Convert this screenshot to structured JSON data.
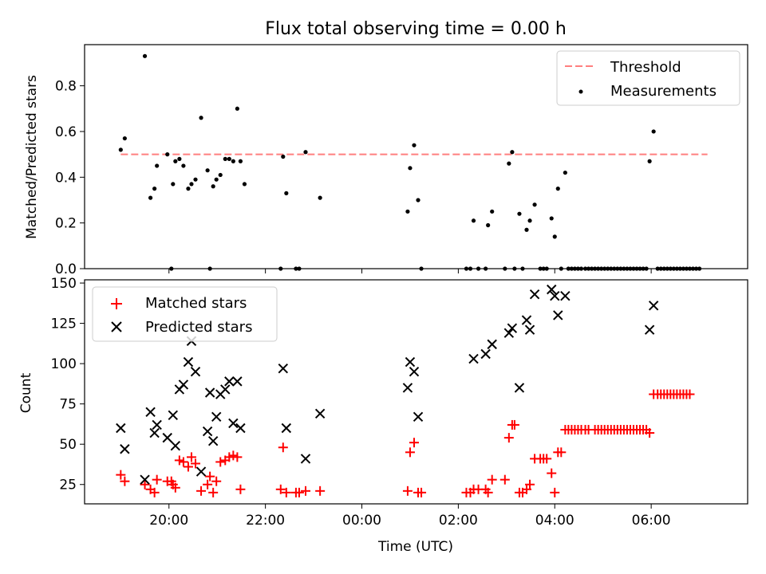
{
  "figure": {
    "title": "Flux total observing time = 0.00 h",
    "xlabel": "Time (UTC)"
  },
  "chart_data": [
    {
      "type": "scatter",
      "title": "Flux total observing time = 0.00 h",
      "ylabel": "Matched/Predicted stars",
      "xlabel": "",
      "xlim": [
        "18:15",
        "08:00"
      ],
      "ylim": [
        0,
        0.98
      ],
      "yticks": [
        "0.0",
        "0.2",
        "0.4",
        "0.6",
        "0.8"
      ],
      "legend_position": "top-right",
      "legend": [
        "Threshold",
        "Measurements"
      ],
      "threshold": {
        "name": "Threshold",
        "value": 0.5,
        "from": "19:00",
        "to": "07:10",
        "color": "#ff7f7f",
        "style": "dashed"
      },
      "series": [
        {
          "name": "Measurements",
          "color": "#000000",
          "points": [
            [
              "19:00",
              0.52
            ],
            [
              "19:05",
              0.57
            ],
            [
              "19:30",
              0.93
            ],
            [
              "19:37",
              0.31
            ],
            [
              "19:42",
              0.35
            ],
            [
              "19:45",
              0.45
            ],
            [
              "19:58",
              0.5
            ],
            [
              "20:03",
              0.0
            ],
            [
              "20:05",
              0.37
            ],
            [
              "20:08",
              0.47
            ],
            [
              "20:13",
              0.48
            ],
            [
              "20:18",
              0.45
            ],
            [
              "20:24",
              0.35
            ],
            [
              "20:28",
              0.37
            ],
            [
              "20:33",
              0.39
            ],
            [
              "20:40",
              0.66
            ],
            [
              "20:48",
              0.43
            ],
            [
              "20:51",
              0.0
            ],
            [
              "20:55",
              0.36
            ],
            [
              "20:59",
              0.39
            ],
            [
              "21:04",
              0.41
            ],
            [
              "21:10",
              0.48
            ],
            [
              "21:15",
              0.48
            ],
            [
              "21:20",
              0.47
            ],
            [
              "21:25",
              0.7
            ],
            [
              "21:29",
              0.47
            ],
            [
              "21:34",
              0.37
            ],
            [
              "22:19",
              0.0
            ],
            [
              "22:22",
              0.49
            ],
            [
              "22:26",
              0.33
            ],
            [
              "22:38",
              0.0
            ],
            [
              "22:42",
              0.0
            ],
            [
              "22:50",
              0.51
            ],
            [
              "23:08",
              0.31
            ],
            [
              "00:57",
              0.25
            ],
            [
              "01:00",
              0.44
            ],
            [
              "01:05",
              0.54
            ],
            [
              "01:10",
              0.3
            ],
            [
              "01:14",
              0.0
            ],
            [
              "02:10",
              0.0
            ],
            [
              "02:15",
              0.0
            ],
            [
              "02:19",
              0.21
            ],
            [
              "02:25",
              0.0
            ],
            [
              "02:34",
              0.0
            ],
            [
              "02:37",
              0.19
            ],
            [
              "02:42",
              0.25
            ],
            [
              "02:58",
              0.0
            ],
            [
              "03:03",
              0.46
            ],
            [
              "03:07",
              0.51
            ],
            [
              "03:10",
              0.0
            ],
            [
              "03:16",
              0.24
            ],
            [
              "03:20",
              0.0
            ],
            [
              "03:25",
              0.17
            ],
            [
              "03:29",
              0.21
            ],
            [
              "03:35",
              0.28
            ],
            [
              "03:42",
              0.0
            ],
            [
              "03:46",
              0.0
            ],
            [
              "03:50",
              0.0
            ],
            [
              "03:56",
              0.22
            ],
            [
              "04:00",
              0.14
            ],
            [
              "04:04",
              0.35
            ],
            [
              "04:08",
              0.0
            ],
            [
              "04:13",
              0.42
            ],
            [
              "04:17",
              0.0
            ],
            [
              "04:21",
              0.0
            ],
            [
              "04:25",
              0.0
            ],
            [
              "04:29",
              0.0
            ],
            [
              "04:33",
              0.0
            ],
            [
              "04:38",
              0.0
            ],
            [
              "04:42",
              0.0
            ],
            [
              "04:46",
              0.0
            ],
            [
              "04:50",
              0.0
            ],
            [
              "04:54",
              0.0
            ],
            [
              "04:58",
              0.0
            ],
            [
              "05:02",
              0.0
            ],
            [
              "05:06",
              0.0
            ],
            [
              "05:10",
              0.0
            ],
            [
              "05:14",
              0.0
            ],
            [
              "05:18",
              0.0
            ],
            [
              "05:22",
              0.0
            ],
            [
              "05:26",
              0.0
            ],
            [
              "05:30",
              0.0
            ],
            [
              "05:34",
              0.0
            ],
            [
              "05:38",
              0.0
            ],
            [
              "05:42",
              0.0
            ],
            [
              "05:46",
              0.0
            ],
            [
              "05:50",
              0.0
            ],
            [
              "05:54",
              0.0
            ],
            [
              "05:58",
              0.47
            ],
            [
              "06:03",
              0.6
            ],
            [
              "06:08",
              0.0
            ],
            [
              "06:12",
              0.0
            ],
            [
              "06:16",
              0.0
            ],
            [
              "06:20",
              0.0
            ],
            [
              "06:24",
              0.0
            ],
            [
              "06:28",
              0.0
            ],
            [
              "06:32",
              0.0
            ],
            [
              "06:36",
              0.0
            ],
            [
              "06:40",
              0.0
            ],
            [
              "06:44",
              0.0
            ],
            [
              "06:48",
              0.0
            ],
            [
              "06:52",
              0.0
            ],
            [
              "06:56",
              0.0
            ],
            [
              "07:00",
              0.0
            ]
          ]
        }
      ]
    },
    {
      "type": "scatter",
      "title": "",
      "xlabel": "Time (UTC)",
      "ylabel": "Count",
      "xlim": [
        "18:15",
        "08:00"
      ],
      "ylim": [
        13,
        152
      ],
      "xticks": [
        "20:00",
        "22:00",
        "00:00",
        "02:00",
        "04:00",
        "06:00"
      ],
      "yticks": [
        "25",
        "50",
        "75",
        "100",
        "125",
        "150"
      ],
      "legend_position": "top-left",
      "legend": [
        "Matched stars",
        "Predicted stars"
      ],
      "series": [
        {
          "name": "Matched stars",
          "marker": "plus",
          "color": "#ff0000",
          "points": [
            [
              "19:00",
              31
            ],
            [
              "19:05",
              27
            ],
            [
              "19:30",
              25
            ],
            [
              "19:37",
              22
            ],
            [
              "19:42",
              20
            ],
            [
              "19:45",
              28
            ],
            [
              "19:58",
              27
            ],
            [
              "20:03",
              27
            ],
            [
              "20:05",
              25
            ],
            [
              "20:08",
              23
            ],
            [
              "20:13",
              40
            ],
            [
              "20:18",
              39
            ],
            [
              "20:24",
              36
            ],
            [
              "20:28",
              42
            ],
            [
              "20:33",
              38
            ],
            [
              "20:40",
              21
            ],
            [
              "20:48",
              25
            ],
            [
              "20:51",
              30
            ],
            [
              "20:55",
              20
            ],
            [
              "20:59",
              27
            ],
            [
              "21:04",
              39
            ],
            [
              "21:10",
              40
            ],
            [
              "21:15",
              42
            ],
            [
              "21:20",
              43
            ],
            [
              "21:25",
              42
            ],
            [
              "21:29",
              22
            ],
            [
              "22:19",
              22
            ],
            [
              "22:22",
              48
            ],
            [
              "22:26",
              20
            ],
            [
              "22:38",
              20
            ],
            [
              "22:42",
              20
            ],
            [
              "22:50",
              21
            ],
            [
              "23:08",
              21
            ],
            [
              "00:57",
              21
            ],
            [
              "01:00",
              45
            ],
            [
              "01:05",
              51
            ],
            [
              "01:10",
              20
            ],
            [
              "01:14",
              20
            ],
            [
              "02:10",
              20
            ],
            [
              "02:15",
              20
            ],
            [
              "02:19",
              22
            ],
            [
              "02:25",
              22
            ],
            [
              "02:34",
              22
            ],
            [
              "02:37",
              20
            ],
            [
              "02:42",
              28
            ],
            [
              "02:58",
              28
            ],
            [
              "03:03",
              54
            ],
            [
              "03:07",
              62
            ],
            [
              "03:10",
              62
            ],
            [
              "03:16",
              20
            ],
            [
              "03:20",
              20
            ],
            [
              "03:25",
              22
            ],
            [
              "03:29",
              25
            ],
            [
              "03:35",
              41
            ],
            [
              "03:42",
              41
            ],
            [
              "03:46",
              41
            ],
            [
              "03:50",
              41
            ],
            [
              "03:56",
              32
            ],
            [
              "04:00",
              20
            ],
            [
              "04:04",
              45
            ],
            [
              "04:08",
              45
            ],
            [
              "04:13",
              59
            ],
            [
              "04:17",
              59
            ],
            [
              "04:21",
              59
            ],
            [
              "04:25",
              59
            ],
            [
              "04:29",
              59
            ],
            [
              "04:33",
              59
            ],
            [
              "04:38",
              59
            ],
            [
              "04:42",
              59
            ],
            [
              "04:50",
              59
            ],
            [
              "04:54",
              59
            ],
            [
              "04:58",
              59
            ],
            [
              "05:02",
              59
            ],
            [
              "05:06",
              59
            ],
            [
              "05:10",
              59
            ],
            [
              "05:14",
              59
            ],
            [
              "05:18",
              59
            ],
            [
              "05:22",
              59
            ],
            [
              "05:26",
              59
            ],
            [
              "05:30",
              59
            ],
            [
              "05:34",
              59
            ],
            [
              "05:38",
              59
            ],
            [
              "05:42",
              59
            ],
            [
              "05:46",
              59
            ],
            [
              "05:50",
              59
            ],
            [
              "05:54",
              59
            ],
            [
              "05:58",
              57
            ],
            [
              "06:03",
              81
            ],
            [
              "06:08",
              81
            ],
            [
              "06:12",
              81
            ],
            [
              "06:16",
              81
            ],
            [
              "06:20",
              81
            ],
            [
              "06:24",
              81
            ],
            [
              "06:28",
              81
            ],
            [
              "06:32",
              81
            ],
            [
              "06:36",
              81
            ],
            [
              "06:40",
              81
            ],
            [
              "06:44",
              81
            ],
            [
              "06:48",
              81
            ]
          ]
        },
        {
          "name": "Predicted stars",
          "marker": "x",
          "color": "#000000",
          "points": [
            [
              "19:00",
              60
            ],
            [
              "19:05",
              47
            ],
            [
              "19:30",
              28
            ],
            [
              "19:37",
              70
            ],
            [
              "19:42",
              57
            ],
            [
              "19:45",
              62
            ],
            [
              "19:58",
              54
            ],
            [
              "20:05",
              68
            ],
            [
              "20:08",
              49
            ],
            [
              "20:13",
              84
            ],
            [
              "20:18",
              87
            ],
            [
              "20:24",
              101
            ],
            [
              "20:28",
              114
            ],
            [
              "20:33",
              95
            ],
            [
              "20:40",
              33
            ],
            [
              "20:48",
              58
            ],
            [
              "20:51",
              82
            ],
            [
              "20:55",
              52
            ],
            [
              "20:59",
              67
            ],
            [
              "21:04",
              81
            ],
            [
              "21:10",
              84
            ],
            [
              "21:15",
              89
            ],
            [
              "21:20",
              63
            ],
            [
              "21:25",
              89
            ],
            [
              "21:29",
              60
            ],
            [
              "22:22",
              97
            ],
            [
              "22:26",
              60
            ],
            [
              "22:50",
              41
            ],
            [
              "23:08",
              69
            ],
            [
              "00:57",
              85
            ],
            [
              "01:00",
              101
            ],
            [
              "01:05",
              95
            ],
            [
              "01:10",
              67
            ],
            [
              "02:19",
              103
            ],
            [
              "02:34",
              106
            ],
            [
              "02:42",
              112
            ],
            [
              "03:03",
              119
            ],
            [
              "03:07",
              122
            ],
            [
              "03:16",
              85
            ],
            [
              "03:25",
              127
            ],
            [
              "03:29",
              121
            ],
            [
              "03:35",
              143
            ],
            [
              "03:56",
              146
            ],
            [
              "04:00",
              142
            ],
            [
              "04:04",
              130
            ],
            [
              "04:13",
              142
            ],
            [
              "05:58",
              121
            ],
            [
              "06:03",
              136
            ]
          ]
        }
      ]
    }
  ]
}
